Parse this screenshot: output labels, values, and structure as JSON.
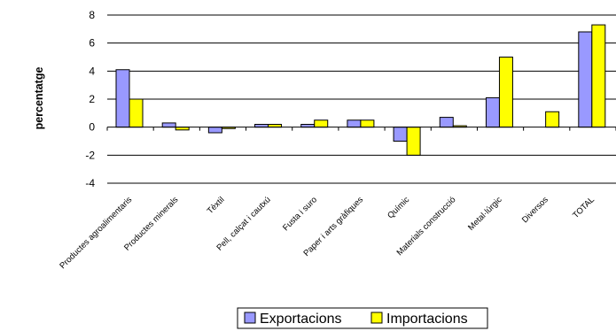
{
  "chart_data": {
    "type": "bar",
    "title": "",
    "xlabel": "",
    "ylabel": "percentatge",
    "ylim": [
      -4,
      8
    ],
    "yticks": [
      -4,
      -2,
      0,
      2,
      4,
      6,
      8
    ],
    "grid": true,
    "legend_position": "bottom",
    "categories": [
      "Productes agroalimentaris",
      "Productes minerals",
      "Tèxtil",
      "Pell, calçat i cautxú",
      "Fusta i suro",
      "Paper i arts gràfiques",
      "Químic",
      "Materials construcció",
      "Metal·lúrgic",
      "Diversos",
      "TOTAL"
    ],
    "series": [
      {
        "name": "Exportacions",
        "color": "#9999FF",
        "values": [
          4.1,
          0.3,
          -0.4,
          0.2,
          0.2,
          0.5,
          -1.0,
          0.7,
          2.1,
          0.0,
          6.8
        ]
      },
      {
        "name": "Importacions",
        "color": "#FFFF00",
        "values": [
          2.0,
          -0.2,
          -0.1,
          0.2,
          0.5,
          0.5,
          -2.0,
          0.1,
          5.0,
          1.1,
          7.3
        ]
      }
    ]
  }
}
